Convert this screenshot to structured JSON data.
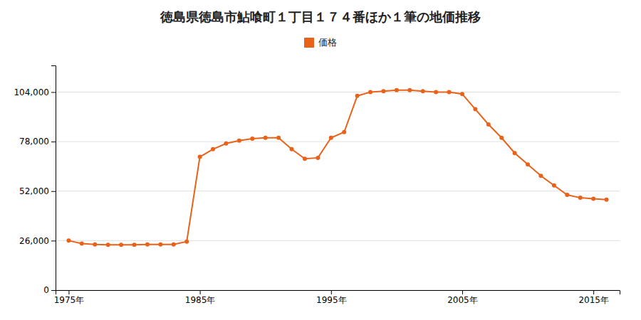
{
  "chart_data": {
    "type": "line",
    "title": "徳島県徳島市鮎喰町１丁目１７４番ほか１筆の地価推移",
    "x": [
      1975,
      1976,
      1977,
      1978,
      1979,
      1980,
      1981,
      1982,
      1983,
      1984,
      1985,
      1986,
      1987,
      1988,
      1989,
      1990,
      1991,
      1992,
      1993,
      1994,
      1995,
      1996,
      1997,
      1998,
      1999,
      2000,
      2001,
      2002,
      2003,
      2004,
      2005,
      2006,
      2007,
      2008,
      2009,
      2010,
      2011,
      2012,
      2013,
      2014,
      2015,
      2016
    ],
    "series": [
      {
        "name": "価格",
        "color": "#e8621a",
        "marker": "circle",
        "values": [
          26000,
          24500,
          24000,
          23800,
          23800,
          23800,
          24000,
          24000,
          24000,
          25500,
          70000,
          74000,
          77000,
          78500,
          79500,
          80000,
          80000,
          74000,
          69000,
          69500,
          80000,
          83000,
          102000,
          104000,
          104500,
          105000,
          105000,
          104500,
          104000,
          104000,
          103000,
          95000,
          87000,
          80000,
          72000,
          66000,
          60000,
          55000,
          50000,
          48500,
          48000,
          47500
        ]
      }
    ],
    "xlim": [
      1974,
      2017
    ],
    "xticks": [
      {
        "value": 1975,
        "label": "1975年"
      },
      {
        "value": 1985,
        "label": "1985年"
      },
      {
        "value": 1995,
        "label": "1995年"
      },
      {
        "value": 2005,
        "label": "2005年"
      },
      {
        "value": 2015,
        "label": "2015年"
      }
    ],
    "ylim": [
      0,
      118000
    ],
    "yticks": [
      0,
      {
        "value": 26000,
        "label": "26,000"
      },
      {
        "value": 52000,
        "label": "52,000"
      },
      {
        "value": 78000,
        "label": "78,000"
      },
      {
        "value": 104000,
        "label": "104,000"
      }
    ],
    "grid": "y",
    "legend": "top"
  }
}
